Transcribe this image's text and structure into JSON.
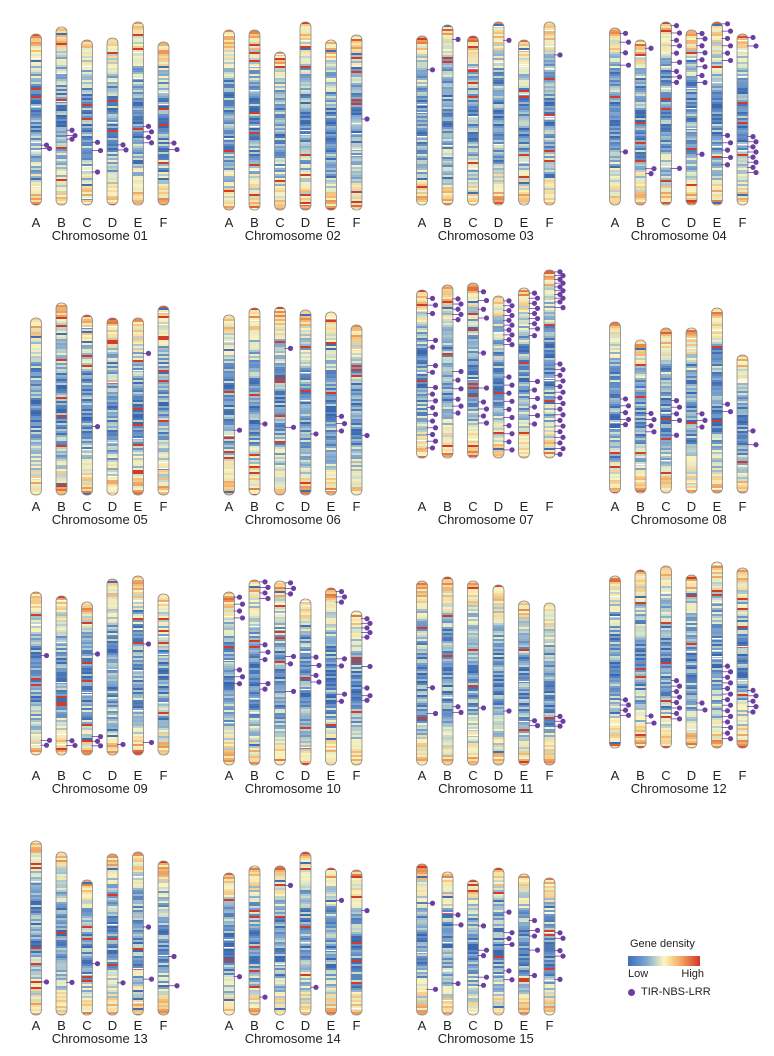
{
  "colors": {
    "low": "#3e6fb6",
    "mid": "#fff7c2",
    "high": "#d6352b",
    "gene": "#6b3fa0",
    "outline": "#888888"
  },
  "legend": {
    "title": "Gene density",
    "low": "Low",
    "high": "High",
    "marker": "TIR-NBS-LRR"
  },
  "chromosomes": [
    {
      "name": "Chromosome 01",
      "subgenomes": [
        {
          "label": "A",
          "genes": [
            0.65,
            0.67
          ]
        },
        {
          "label": "B",
          "genes": [
            0.58,
            0.61,
            0.63
          ]
        },
        {
          "label": "C",
          "genes": [
            0.62,
            0.67,
            0.8
          ]
        },
        {
          "label": "D",
          "genes": [
            0.64,
            0.67
          ]
        },
        {
          "label": "E",
          "genes": [
            0.57,
            0.6,
            0.63,
            0.66
          ]
        },
        {
          "label": "F",
          "genes": [
            0.62,
            0.66
          ]
        }
      ]
    },
    {
      "name": "Chromosome 02",
      "subgenomes": [
        {
          "label": "A",
          "genes": []
        },
        {
          "label": "B",
          "genes": []
        },
        {
          "label": "C",
          "genes": []
        },
        {
          "label": "D",
          "genes": []
        },
        {
          "label": "E",
          "genes": []
        },
        {
          "label": "F",
          "genes": [
            0.48
          ]
        }
      ]
    },
    {
      "name": "Chromosome 03",
      "subgenomes": [
        {
          "label": "A",
          "genes": [
            0.2
          ]
        },
        {
          "label": "B",
          "genes": [
            0.08
          ]
        },
        {
          "label": "C",
          "genes": []
        },
        {
          "label": "D",
          "genes": [
            0.1
          ]
        },
        {
          "label": "E",
          "genes": []
        },
        {
          "label": "F",
          "genes": [
            0.18
          ]
        }
      ]
    },
    {
      "name": "Chromosome 04",
      "subgenomes": [
        {
          "label": "A",
          "genes": [
            0.03,
            0.08,
            0.14,
            0.21,
            0.7
          ]
        },
        {
          "label": "B",
          "genes": [
            0.05,
            0.78,
            0.81
          ]
        },
        {
          "label": "C",
          "genes": [
            0.02,
            0.06,
            0.1,
            0.13,
            0.17,
            0.22,
            0.27,
            0.3,
            0.33,
            0.8
          ]
        },
        {
          "label": "D",
          "genes": [
            0.02,
            0.05,
            0.09,
            0.13,
            0.17,
            0.21,
            0.26,
            0.3,
            0.71
          ]
        },
        {
          "label": "E",
          "genes": [
            0.01,
            0.05,
            0.09,
            0.13,
            0.17,
            0.21,
            0.62,
            0.66,
            0.7,
            0.74,
            0.78
          ]
        },
        {
          "label": "F",
          "genes": [
            0.02,
            0.07,
            0.6,
            0.63,
            0.66,
            0.69,
            0.72,
            0.75,
            0.78,
            0.81
          ]
        }
      ]
    },
    {
      "name": "Chromosome 05",
      "subgenomes": [
        {
          "label": "A",
          "genes": []
        },
        {
          "label": "B",
          "genes": []
        },
        {
          "label": "C",
          "genes": [
            0.62
          ]
        },
        {
          "label": "D",
          "genes": []
        },
        {
          "label": "E",
          "genes": [
            0.2
          ]
        },
        {
          "label": "F",
          "genes": []
        }
      ]
    },
    {
      "name": "Chromosome 06",
      "subgenomes": [
        {
          "label": "A",
          "genes": [
            0.64
          ]
        },
        {
          "label": "B",
          "genes": [
            0.62
          ]
        },
        {
          "label": "C",
          "genes": [
            0.22,
            0.64
          ]
        },
        {
          "label": "D",
          "genes": [
            0.67
          ]
        },
        {
          "label": "E",
          "genes": [
            0.57,
            0.61,
            0.65
          ]
        },
        {
          "label": "F",
          "genes": [
            0.65
          ]
        }
      ]
    },
    {
      "name": "Chromosome 07",
      "subgenomes": [
        {
          "label": "A",
          "genes": [
            0.05,
            0.09,
            0.14,
            0.3,
            0.34,
            0.45,
            0.49,
            0.58,
            0.62,
            0.66,
            0.7,
            0.74,
            0.78,
            0.82,
            0.86,
            0.9,
            0.94
          ]
        },
        {
          "label": "B",
          "genes": [
            0.08,
            0.11,
            0.14,
            0.17,
            0.2,
            0.5,
            0.55,
            0.6,
            0.66,
            0.7,
            0.74
          ]
        },
        {
          "label": "C",
          "genes": [
            0.05,
            0.1,
            0.15,
            0.2,
            0.4,
            0.6,
            0.68,
            0.72,
            0.76,
            0.8
          ]
        },
        {
          "label": "D",
          "genes": [
            0.03,
            0.06,
            0.09,
            0.12,
            0.15,
            0.18,
            0.21,
            0.24,
            0.27,
            0.3,
            0.5,
            0.55,
            0.6,
            0.65,
            0.7,
            0.75,
            0.8,
            0.85,
            0.9,
            0.95
          ]
        },
        {
          "label": "E",
          "genes": [
            0.03,
            0.06,
            0.09,
            0.12,
            0.15,
            0.18,
            0.21,
            0.24,
            0.28,
            0.55,
            0.6,
            0.65,
            0.7,
            0.75,
            0.8
          ]
        },
        {
          "label": "F",
          "genes": [
            0.01,
            0.03,
            0.05,
            0.07,
            0.09,
            0.11,
            0.13,
            0.15,
            0.17,
            0.2,
            0.5,
            0.53,
            0.56,
            0.59,
            0.62,
            0.65,
            0.68,
            0.71,
            0.74,
            0.77,
            0.8,
            0.83,
            0.86,
            0.89,
            0.92,
            0.95,
            0.98
          ]
        }
      ]
    },
    {
      "name": "Chromosome 08",
      "subgenomes": [
        {
          "label": "A",
          "genes": [
            0.45,
            0.49,
            0.53,
            0.57,
            0.6
          ]
        },
        {
          "label": "B",
          "genes": [
            0.48,
            0.52,
            0.56,
            0.6
          ]
        },
        {
          "label": "C",
          "genes": [
            0.44,
            0.48,
            0.52,
            0.56,
            0.65
          ]
        },
        {
          "label": "D",
          "genes": [
            0.52,
            0.56,
            0.6
          ]
        },
        {
          "label": "E",
          "genes": [
            0.52,
            0.56
          ]
        },
        {
          "label": "F",
          "genes": [
            0.55,
            0.65
          ]
        }
      ]
    },
    {
      "name": "Chromosome 09",
      "subgenomes": [
        {
          "label": "A",
          "genes": [
            0.39,
            0.91,
            0.94
          ]
        },
        {
          "label": "B",
          "genes": [
            0.91,
            0.94
          ]
        },
        {
          "label": "C",
          "genes": [
            0.34,
            0.88,
            0.91,
            0.94
          ]
        },
        {
          "label": "D",
          "genes": [
            0.94
          ]
        },
        {
          "label": "E",
          "genes": [
            0.38,
            0.93
          ]
        },
        {
          "label": "F",
          "genes": []
        }
      ]
    },
    {
      "name": "Chromosome 10",
      "subgenomes": [
        {
          "label": "A",
          "genes": [
            0.03,
            0.07,
            0.11,
            0.15,
            0.45,
            0.49,
            0.53
          ]
        },
        {
          "label": "B",
          "genes": [
            0.01,
            0.04,
            0.07,
            0.1,
            0.35,
            0.39,
            0.43,
            0.56,
            0.59
          ]
        },
        {
          "label": "C",
          "genes": [
            0.01,
            0.04,
            0.07,
            0.41,
            0.45,
            0.6
          ]
        },
        {
          "label": "D",
          "genes": [
            0.35,
            0.4,
            0.46,
            0.5
          ]
        },
        {
          "label": "E",
          "genes": [
            0.02,
            0.05,
            0.08,
            0.4,
            0.44,
            0.6,
            0.64
          ]
        },
        {
          "label": "F",
          "genes": [
            0.05,
            0.08,
            0.11,
            0.14,
            0.17,
            0.36,
            0.5,
            0.55,
            0.58
          ]
        }
      ]
    },
    {
      "name": "Chromosome 11",
      "subgenomes": [
        {
          "label": "A",
          "genes": [
            0.58,
            0.72
          ]
        },
        {
          "label": "B",
          "genes": [
            0.69,
            0.72
          ]
        },
        {
          "label": "C",
          "genes": [
            0.69
          ]
        },
        {
          "label": "D",
          "genes": [
            0.7
          ]
        },
        {
          "label": "E",
          "genes": [
            0.73,
            0.76
          ]
        },
        {
          "label": "F",
          "genes": [
            0.7,
            0.73,
            0.76
          ]
        }
      ]
    },
    {
      "name": "Chromosome 12",
      "subgenomes": [
        {
          "label": "A",
          "genes": [
            0.72,
            0.75,
            0.78,
            0.81
          ]
        },
        {
          "label": "B",
          "genes": [
            0.82,
            0.86
          ]
        },
        {
          "label": "C",
          "genes": [
            0.63,
            0.66,
            0.69,
            0.72,
            0.75,
            0.78,
            0.81,
            0.84
          ]
        },
        {
          "label": "D",
          "genes": [
            0.74,
            0.78
          ]
        },
        {
          "label": "E",
          "genes": [
            0.56,
            0.59,
            0.62,
            0.65,
            0.68,
            0.71,
            0.74,
            0.77,
            0.8,
            0.83,
            0.86,
            0.89,
            0.92,
            0.95
          ]
        },
        {
          "label": "F",
          "genes": [
            0.68,
            0.71,
            0.74,
            0.77,
            0.8
          ]
        }
      ]
    },
    {
      "name": "Chromosome 13",
      "subgenomes": [
        {
          "label": "A",
          "genes": [
            0.81
          ]
        },
        {
          "label": "B",
          "genes": [
            0.8
          ]
        },
        {
          "label": "C",
          "genes": [
            0.62
          ]
        },
        {
          "label": "D",
          "genes": [
            0.8
          ]
        },
        {
          "label": "E",
          "genes": [
            0.46,
            0.78
          ]
        },
        {
          "label": "F",
          "genes": [
            0.62,
            0.81
          ]
        }
      ]
    },
    {
      "name": "Chromosome 14",
      "subgenomes": [
        {
          "label": "A",
          "genes": [
            0.73
          ]
        },
        {
          "label": "B",
          "genes": [
            0.88
          ]
        },
        {
          "label": "C",
          "genes": [
            0.13
          ]
        },
        {
          "label": "D",
          "genes": [
            0.83
          ]
        },
        {
          "label": "E",
          "genes": [
            0.22
          ]
        },
        {
          "label": "F",
          "genes": [
            0.28
          ]
        }
      ]
    },
    {
      "name": "Chromosome 15",
      "subgenomes": [
        {
          "label": "A",
          "genes": [
            0.26,
            0.83
          ]
        },
        {
          "label": "B",
          "genes": [
            0.3,
            0.37,
            0.78
          ]
        },
        {
          "label": "C",
          "genes": [
            0.34,
            0.52,
            0.56,
            0.72,
            0.78
          ]
        },
        {
          "label": "D",
          "genes": [
            0.3,
            0.44,
            0.48,
            0.52,
            0.7,
            0.76
          ]
        },
        {
          "label": "E",
          "genes": [
            0.33,
            0.4,
            0.44,
            0.54,
            0.72
          ]
        },
        {
          "label": "F",
          "genes": [
            0.4,
            0.44,
            0.53,
            0.57,
            0.74
          ]
        }
      ]
    }
  ]
}
